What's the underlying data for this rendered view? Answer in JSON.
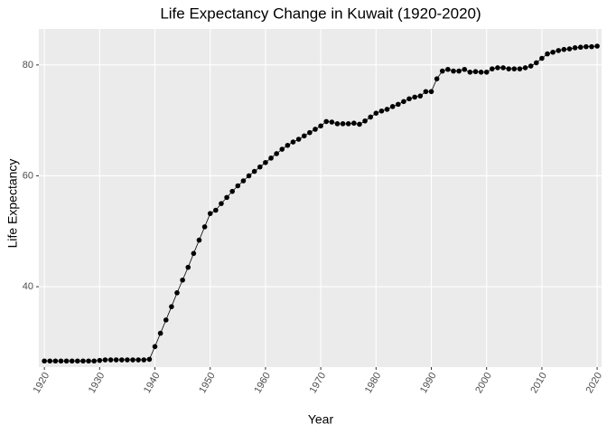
{
  "chart_data": {
    "type": "line",
    "title": "Life Expectancy Change in Kuwait (1920-2020)",
    "x_label": "Year",
    "y_label": "Life Expectancy",
    "x": [
      1920,
      1921,
      1922,
      1923,
      1924,
      1925,
      1926,
      1927,
      1928,
      1929,
      1930,
      1931,
      1932,
      1933,
      1934,
      1935,
      1936,
      1937,
      1938,
      1939,
      1940,
      1941,
      1942,
      1943,
      1944,
      1945,
      1946,
      1947,
      1948,
      1949,
      1950,
      1951,
      1952,
      1953,
      1954,
      1955,
      1956,
      1957,
      1958,
      1959,
      1960,
      1961,
      1962,
      1963,
      1964,
      1965,
      1966,
      1967,
      1968,
      1969,
      1970,
      1971,
      1972,
      1973,
      1974,
      1975,
      1976,
      1977,
      1978,
      1979,
      1980,
      1981,
      1982,
      1983,
      1984,
      1985,
      1986,
      1987,
      1988,
      1989,
      1990,
      1991,
      1992,
      1993,
      1994,
      1995,
      1996,
      1997,
      1998,
      1999,
      2000,
      2001,
      2002,
      2003,
      2004,
      2005,
      2006,
      2007,
      2008,
      2009,
      2010,
      2011,
      2012,
      2013,
      2014,
      2015,
      2016,
      2017,
      2018,
      2019,
      2020
    ],
    "values": [
      26.6,
      26.6,
      26.6,
      26.6,
      26.6,
      26.6,
      26.6,
      26.6,
      26.6,
      26.6,
      26.7,
      26.8,
      26.8,
      26.8,
      26.8,
      26.8,
      26.8,
      26.8,
      26.8,
      26.9,
      29.2,
      31.6,
      34.0,
      36.4,
      38.9,
      41.2,
      43.5,
      46.0,
      48.4,
      50.8,
      53.2,
      53.8,
      55.0,
      56.1,
      57.2,
      58.2,
      59.1,
      60.0,
      60.8,
      61.6,
      62.4,
      63.2,
      64.0,
      64.8,
      65.5,
      66.1,
      66.6,
      67.2,
      67.8,
      68.4,
      69.0,
      69.8,
      69.7,
      69.4,
      69.4,
      69.4,
      69.5,
      69.3,
      69.9,
      70.6,
      71.3,
      71.7,
      72.0,
      72.5,
      72.9,
      73.4,
      73.9,
      74.2,
      74.4,
      75.2,
      75.2,
      77.5,
      78.9,
      79.2,
      78.9,
      78.9,
      79.2,
      78.7,
      78.8,
      78.7,
      78.7,
      79.3,
      79.5,
      79.5,
      79.3,
      79.3,
      79.3,
      79.5,
      79.8,
      80.4,
      81.2,
      82.0,
      82.3,
      82.6,
      82.8,
      82.9,
      83.1,
      83.2,
      83.3,
      83.3,
      83.4
    ],
    "color": "#000000",
    "xlim": [
      1919,
      2020.8
    ],
    "xticks": [
      1920,
      1930,
      1940,
      1950,
      1960,
      1970,
      1980,
      1990,
      2000,
      2010,
      2020
    ],
    "ylim": [
      25.5,
      86.5
    ],
    "yticks": [
      40,
      60,
      80
    ],
    "grid": true
  }
}
